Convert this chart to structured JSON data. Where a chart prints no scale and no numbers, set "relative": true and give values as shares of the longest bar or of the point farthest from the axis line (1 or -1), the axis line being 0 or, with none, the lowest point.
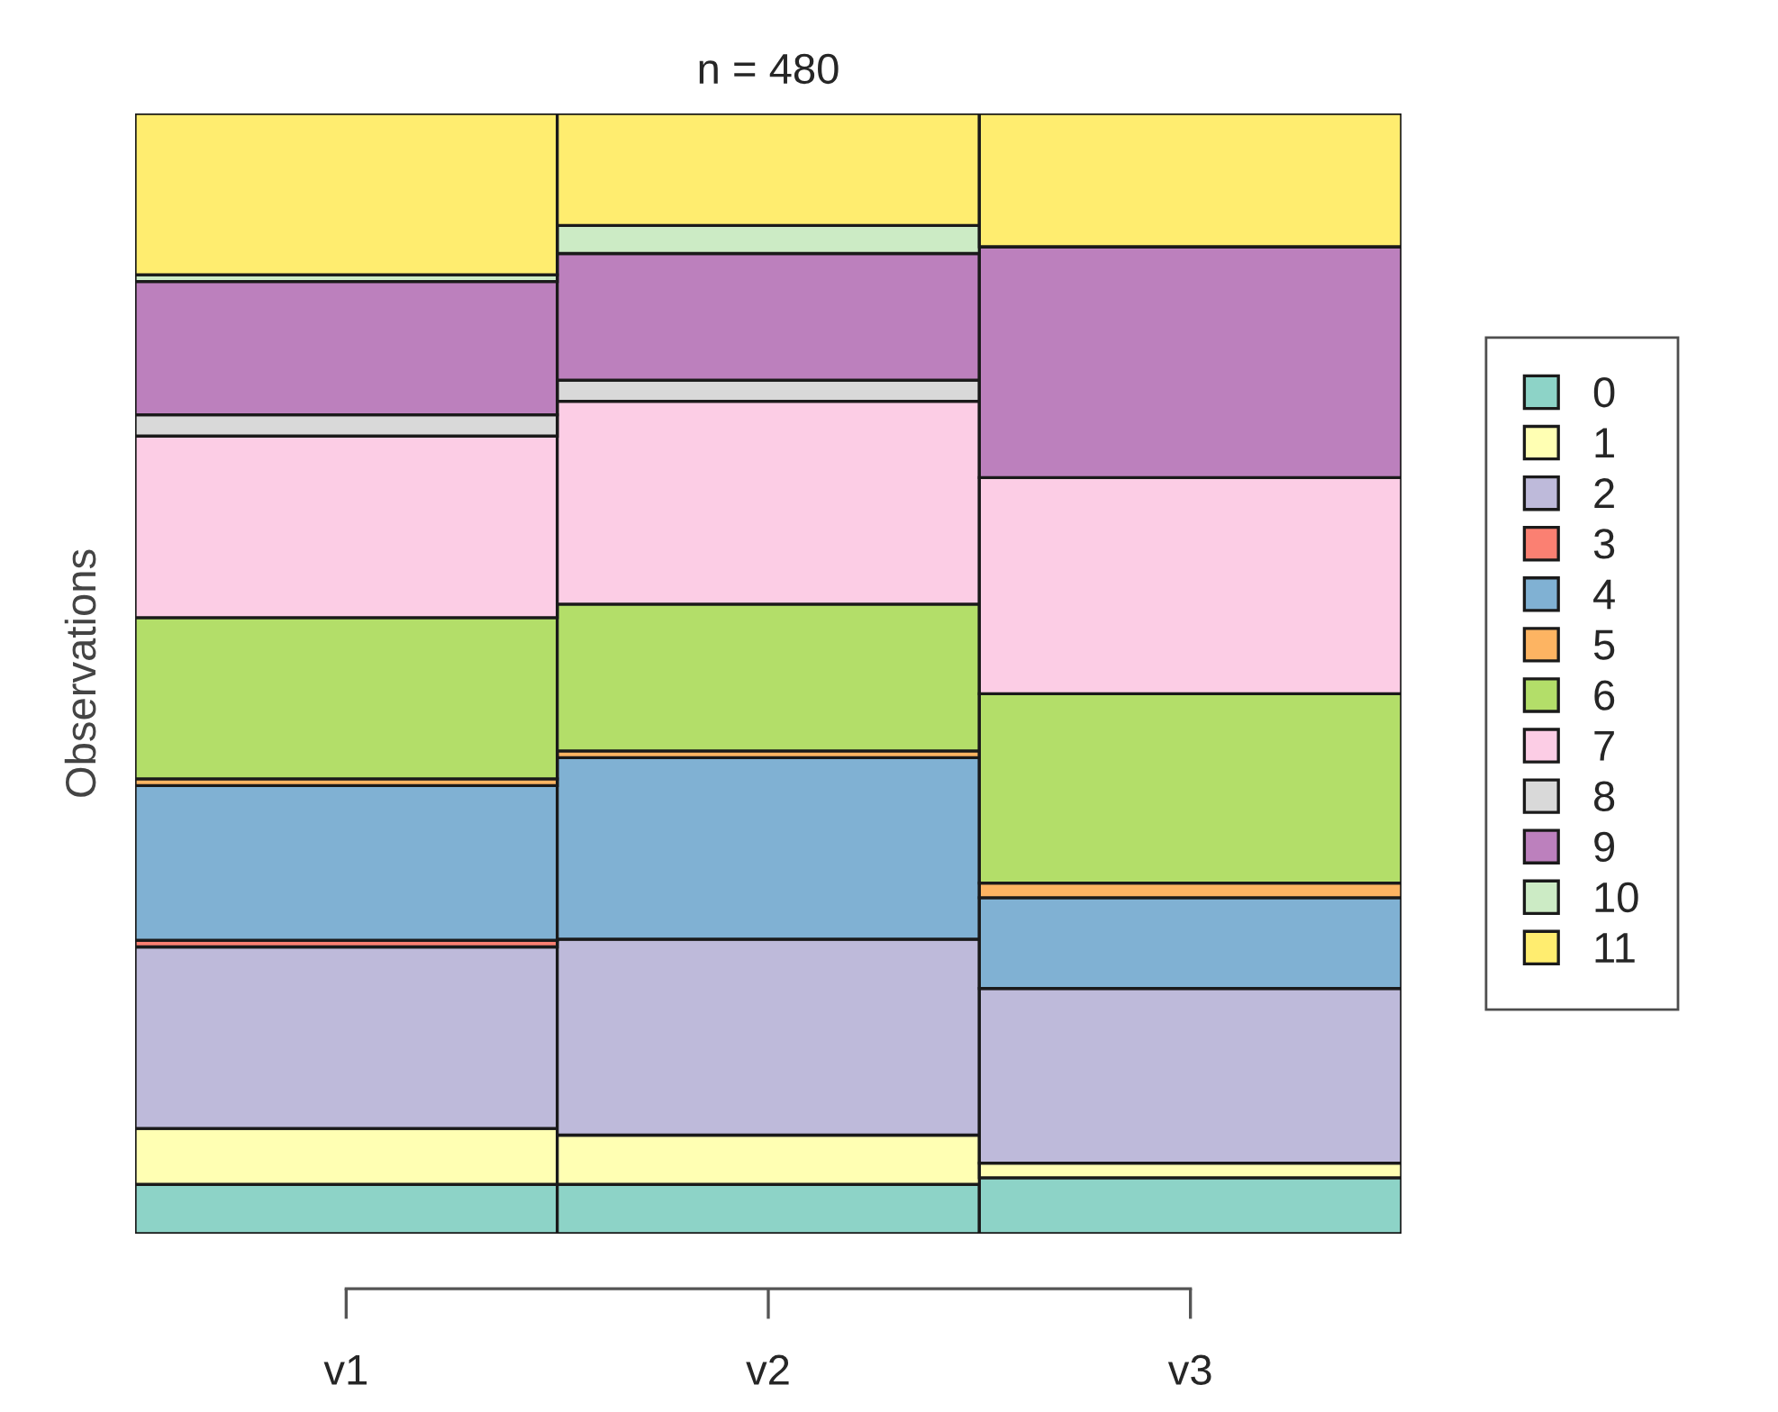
{
  "chart_data": {
    "type": "bar",
    "stacked": true,
    "relative": true,
    "title": "n = 480",
    "ylabel": "Observations",
    "categories": [
      "v1",
      "v2",
      "v3"
    ],
    "legend": "right",
    "series": [
      {
        "name": "0",
        "color": "#8dd3c7",
        "values": [
          0.044,
          0.044,
          0.05
        ]
      },
      {
        "name": "1",
        "color": "#ffffb3",
        "values": [
          0.05,
          0.044,
          0.013
        ]
      },
      {
        "name": "2",
        "color": "#bebada",
        "values": [
          0.162,
          0.175,
          0.156
        ]
      },
      {
        "name": "3",
        "color": "#fb8072",
        "values": [
          0.006,
          0,
          0
        ]
      },
      {
        "name": "4",
        "color": "#80b1d3",
        "values": [
          0.138,
          0.162,
          0.081
        ]
      },
      {
        "name": "5",
        "color": "#fdb462",
        "values": [
          0.006,
          0.006,
          0.013
        ]
      },
      {
        "name": "6",
        "color": "#b3de69",
        "values": [
          0.144,
          0.131,
          0.169
        ]
      },
      {
        "name": "7",
        "color": "#fccde5",
        "values": [
          0.162,
          0.181,
          0.193
        ]
      },
      {
        "name": "8",
        "color": "#d9d9d9",
        "values": [
          0.019,
          0.019,
          0
        ]
      },
      {
        "name": "9",
        "color": "#bc80bd",
        "values": [
          0.119,
          0.113,
          0.206
        ]
      },
      {
        "name": "10",
        "color": "#ccebc5",
        "values": [
          0.006,
          0.025,
          0
        ]
      },
      {
        "name": "11",
        "color": "#ffed6f",
        "values": [
          0.144,
          0.1,
          0.119
        ]
      }
    ]
  }
}
